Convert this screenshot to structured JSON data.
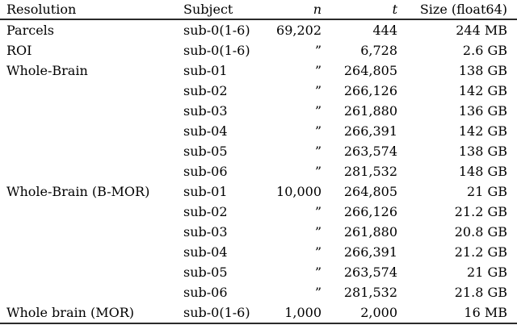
{
  "table": {
    "columns": [
      {
        "label": "Resolution"
      },
      {
        "label": "Subject"
      },
      {
        "label": "n"
      },
      {
        "label": "t"
      },
      {
        "label": "Size (float64)"
      }
    ],
    "ditto_mark": "”",
    "rows": [
      {
        "resolution": "Parcels",
        "subject": "sub-0(1-6)",
        "n": "69,202",
        "t": "444",
        "size": "244 MB"
      },
      {
        "resolution": "ROI",
        "subject": "sub-0(1-6)",
        "n": "”",
        "t": "6,728",
        "size": "2.6 GB"
      },
      {
        "resolution": "Whole-Brain",
        "subject": "sub-01",
        "n": "”",
        "t": "264,805",
        "size": "138 GB"
      },
      {
        "resolution": "",
        "subject": "sub-02",
        "n": "”",
        "t": "266,126",
        "size": "142 GB"
      },
      {
        "resolution": "",
        "subject": "sub-03",
        "n": "”",
        "t": "261,880",
        "size": "136 GB"
      },
      {
        "resolution": "",
        "subject": "sub-04",
        "n": "”",
        "t": "266,391",
        "size": "142 GB"
      },
      {
        "resolution": "",
        "subject": "sub-05",
        "n": "”",
        "t": "263,574",
        "size": "138 GB"
      },
      {
        "resolution": "",
        "subject": "sub-06",
        "n": "”",
        "t": "281,532",
        "size": "148 GB"
      },
      {
        "resolution": "Whole-Brain (B-MOR)",
        "subject": "sub-01",
        "n": "10,000",
        "t": "264,805",
        "size": "21 GB"
      },
      {
        "resolution": "",
        "subject": "sub-02",
        "n": "”",
        "t": "266,126",
        "size": "21.2 GB"
      },
      {
        "resolution": "",
        "subject": "sub-03",
        "n": "”",
        "t": "261,880",
        "size": "20.8 GB"
      },
      {
        "resolution": "",
        "subject": "sub-04",
        "n": "”",
        "t": "266,391",
        "size": "21.2 GB"
      },
      {
        "resolution": "",
        "subject": "sub-05",
        "n": "”",
        "t": "263,574",
        "size": "21 GB"
      },
      {
        "resolution": "",
        "subject": "sub-06",
        "n": "”",
        "t": "281,532",
        "size": "21.8 GB"
      },
      {
        "resolution": "Whole brain (MOR)",
        "subject": "sub-0(1-6)",
        "n": "1,000",
        "t": "2,000",
        "size": "16 MB"
      }
    ],
    "colors": {
      "background": "#ffffff",
      "text": "#000000",
      "rule": "#2a2a2a"
    }
  }
}
